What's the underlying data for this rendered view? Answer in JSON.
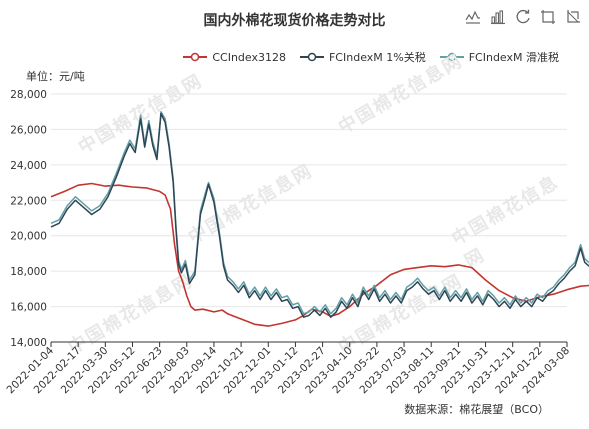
{
  "title": "国内外棉花现货价格走势对比",
  "unit": "单位：元/吨",
  "source": "数据来源：棉花展望（BCO）",
  "watermark": "中国棉花信息网",
  "toolbox": [
    {
      "name": "line-chart-icon"
    },
    {
      "name": "bar-chart-icon"
    },
    {
      "name": "restore-icon"
    },
    {
      "name": "zoom-icon"
    },
    {
      "name": "zoom-reset-icon"
    }
  ],
  "chart_data": {
    "type": "line",
    "title": "国内外棉花现货价格走势对比",
    "ylabel": "单位：元/吨",
    "ylim": [
      14000,
      28000
    ],
    "yticks": [
      14000,
      16000,
      18000,
      20000,
      22000,
      24000,
      26000,
      28000
    ],
    "ytick_labels": [
      "14,000",
      "16,000",
      "18,000",
      "20,000",
      "22,000",
      "24,000",
      "26,000",
      "28,000"
    ],
    "xticks": [
      "2022-01-04",
      "2022-02-17",
      "2022-03-30",
      "2022-05-12",
      "2022-06-23",
      "2022-08-03",
      "2022-09-14",
      "2022-10-21",
      "2022-12-01",
      "2023-01-12",
      "2023-02-27",
      "2023-04-10",
      "2023-05-22",
      "2023-07-03",
      "2023-08-11",
      "2023-09-21",
      "2023-10-31",
      "2023-12-11",
      "2024-01-22",
      "2024-03-08"
    ],
    "legend_position": "top-right",
    "grid": "horizontal",
    "series": [
      {
        "name": "CCIndex3128",
        "color": "#c23531",
        "points": [
          [
            0,
            22200
          ],
          [
            0.5,
            22500
          ],
          [
            1,
            22850
          ],
          [
            1.5,
            22950
          ],
          [
            2,
            22800
          ],
          [
            2.5,
            22850
          ],
          [
            3,
            22750
          ],
          [
            3.5,
            22700
          ],
          [
            4,
            22500
          ],
          [
            4.2,
            22300
          ],
          [
            4.4,
            21500
          ],
          [
            4.55,
            19500
          ],
          [
            4.7,
            18000
          ],
          [
            4.85,
            17400
          ],
          [
            5,
            16600
          ],
          [
            5.15,
            16000
          ],
          [
            5.3,
            15800
          ],
          [
            5.6,
            15850
          ],
          [
            6,
            15700
          ],
          [
            6.3,
            15800
          ],
          [
            6.5,
            15600
          ],
          [
            7,
            15300
          ],
          [
            7.5,
            15000
          ],
          [
            8,
            14900
          ],
          [
            8.5,
            15050
          ],
          [
            9,
            15250
          ],
          [
            9.3,
            15500
          ],
          [
            9.6,
            15850
          ],
          [
            10,
            15700
          ],
          [
            10.3,
            15450
          ],
          [
            10.6,
            15600
          ],
          [
            11,
            16000
          ],
          [
            11.5,
            16700
          ],
          [
            12,
            17200
          ],
          [
            12.5,
            17800
          ],
          [
            13,
            18100
          ],
          [
            13.5,
            18200
          ],
          [
            14,
            18300
          ],
          [
            14.5,
            18250
          ],
          [
            15,
            18350
          ],
          [
            15.5,
            18200
          ],
          [
            16,
            17500
          ],
          [
            16.5,
            16900
          ],
          [
            17,
            16500
          ],
          [
            17.5,
            16300
          ],
          [
            18,
            16550
          ],
          [
            18.5,
            16700
          ],
          [
            19,
            16950
          ],
          [
            19.5,
            17150
          ],
          [
            19.9,
            17200
          ]
        ]
      },
      {
        "name": "FCIndexM 1%关税",
        "color": "#2f4554",
        "points": [
          [
            0,
            20500
          ],
          [
            0.3,
            20700
          ],
          [
            0.6,
            21500
          ],
          [
            0.9,
            22000
          ],
          [
            1.2,
            21600
          ],
          [
            1.5,
            21200
          ],
          [
            1.8,
            21500
          ],
          [
            2.1,
            22200
          ],
          [
            2.4,
            23300
          ],
          [
            2.7,
            24500
          ],
          [
            2.9,
            25200
          ],
          [
            3.1,
            24700
          ],
          [
            3.3,
            26600
          ],
          [
            3.45,
            25000
          ],
          [
            3.6,
            26300
          ],
          [
            3.75,
            25100
          ],
          [
            3.9,
            24300
          ],
          [
            4.05,
            26900
          ],
          [
            4.2,
            26400
          ],
          [
            4.35,
            25000
          ],
          [
            4.5,
            23000
          ],
          [
            4.6,
            20400
          ],
          [
            4.7,
            18400
          ],
          [
            4.8,
            17900
          ],
          [
            4.95,
            18400
          ],
          [
            5.1,
            17300
          ],
          [
            5.3,
            17800
          ],
          [
            5.5,
            21200
          ],
          [
            5.7,
            22300
          ],
          [
            5.8,
            22900
          ],
          [
            6.0,
            21900
          ],
          [
            6.2,
            20000
          ],
          [
            6.35,
            18300
          ],
          [
            6.5,
            17500
          ],
          [
            6.7,
            17200
          ],
          [
            6.9,
            16800
          ],
          [
            7.1,
            17200
          ],
          [
            7.3,
            16500
          ],
          [
            7.5,
            16900
          ],
          [
            7.7,
            16400
          ],
          [
            7.9,
            16900
          ],
          [
            8.1,
            16400
          ],
          [
            8.3,
            16800
          ],
          [
            8.5,
            16300
          ],
          [
            8.7,
            16400
          ],
          [
            8.9,
            15900
          ],
          [
            9.1,
            16000
          ],
          [
            9.3,
            15400
          ],
          [
            9.5,
            15500
          ],
          [
            9.7,
            15800
          ],
          [
            9.9,
            15500
          ],
          [
            10.1,
            15900
          ],
          [
            10.3,
            15400
          ],
          [
            10.5,
            15700
          ],
          [
            10.7,
            16300
          ],
          [
            10.9,
            15900
          ],
          [
            11.1,
            16500
          ],
          [
            11.3,
            16000
          ],
          [
            11.5,
            16900
          ],
          [
            11.7,
            16400
          ],
          [
            11.9,
            17000
          ],
          [
            12.1,
            16300
          ],
          [
            12.3,
            16700
          ],
          [
            12.5,
            16200
          ],
          [
            12.7,
            16600
          ],
          [
            12.9,
            16200
          ],
          [
            13.1,
            16900
          ],
          [
            13.3,
            17100
          ],
          [
            13.5,
            17400
          ],
          [
            13.7,
            17000
          ],
          [
            13.9,
            16700
          ],
          [
            14.1,
            16900
          ],
          [
            14.3,
            16400
          ],
          [
            14.5,
            16900
          ],
          [
            14.7,
            16300
          ],
          [
            14.9,
            16700
          ],
          [
            15.1,
            16300
          ],
          [
            15.3,
            16800
          ],
          [
            15.5,
            16200
          ],
          [
            15.7,
            16600
          ],
          [
            15.9,
            16100
          ],
          [
            16.1,
            16700
          ],
          [
            16.3,
            16400
          ],
          [
            16.5,
            16000
          ],
          [
            16.7,
            16300
          ],
          [
            16.9,
            15900
          ],
          [
            17.1,
            16400
          ],
          [
            17.3,
            16000
          ],
          [
            17.5,
            16300
          ],
          [
            17.7,
            16000
          ],
          [
            17.9,
            16500
          ],
          [
            18.1,
            16300
          ],
          [
            18.3,
            16700
          ],
          [
            18.5,
            16900
          ],
          [
            18.7,
            17300
          ],
          [
            18.9,
            17600
          ],
          [
            19.1,
            18000
          ],
          [
            19.3,
            18300
          ],
          [
            19.5,
            19300
          ],
          [
            19.65,
            18500
          ],
          [
            19.8,
            18300
          ],
          [
            19.9,
            18200
          ]
        ]
      },
      {
        "name": "FCIndexM 滑准税",
        "color": "#61a0a8",
        "points": [
          [
            0,
            20700
          ],
          [
            0.3,
            20900
          ],
          [
            0.6,
            21700
          ],
          [
            0.9,
            22200
          ],
          [
            1.2,
            21800
          ],
          [
            1.5,
            21400
          ],
          [
            1.8,
            21700
          ],
          [
            2.1,
            22400
          ],
          [
            2.4,
            23500
          ],
          [
            2.7,
            24700
          ],
          [
            2.9,
            25400
          ],
          [
            3.1,
            24900
          ],
          [
            3.3,
            26800
          ],
          [
            3.45,
            25200
          ],
          [
            3.6,
            26500
          ],
          [
            3.75,
            25300
          ],
          [
            3.9,
            24500
          ],
          [
            4.05,
            27000
          ],
          [
            4.2,
            26600
          ],
          [
            4.35,
            25200
          ],
          [
            4.5,
            23200
          ],
          [
            4.6,
            20600
          ],
          [
            4.7,
            18600
          ],
          [
            4.8,
            18100
          ],
          [
            4.95,
            18600
          ],
          [
            5.1,
            17500
          ],
          [
            5.3,
            18000
          ],
          [
            5.5,
            21400
          ],
          [
            5.7,
            22500
          ],
          [
            5.8,
            23000
          ],
          [
            6.0,
            22100
          ],
          [
            6.2,
            20200
          ],
          [
            6.35,
            18500
          ],
          [
            6.5,
            17700
          ],
          [
            6.7,
            17400
          ],
          [
            6.9,
            17000
          ],
          [
            7.1,
            17400
          ],
          [
            7.3,
            16700
          ],
          [
            7.5,
            17100
          ],
          [
            7.7,
            16600
          ],
          [
            7.9,
            17100
          ],
          [
            8.1,
            16600
          ],
          [
            8.3,
            17000
          ],
          [
            8.5,
            16500
          ],
          [
            8.7,
            16600
          ],
          [
            8.9,
            16100
          ],
          [
            9.1,
            16200
          ],
          [
            9.3,
            15600
          ],
          [
            9.5,
            15700
          ],
          [
            9.7,
            16000
          ],
          [
            9.9,
            15700
          ],
          [
            10.1,
            16100
          ],
          [
            10.3,
            15600
          ],
          [
            10.5,
            15900
          ],
          [
            10.7,
            16500
          ],
          [
            10.9,
            16100
          ],
          [
            11.1,
            16700
          ],
          [
            11.3,
            16200
          ],
          [
            11.5,
            17100
          ],
          [
            11.7,
            16600
          ],
          [
            11.9,
            17200
          ],
          [
            12.1,
            16500
          ],
          [
            12.3,
            16900
          ],
          [
            12.5,
            16400
          ],
          [
            12.7,
            16800
          ],
          [
            12.9,
            16400
          ],
          [
            13.1,
            17100
          ],
          [
            13.3,
            17300
          ],
          [
            13.5,
            17600
          ],
          [
            13.7,
            17200
          ],
          [
            13.9,
            16900
          ],
          [
            14.1,
            17100
          ],
          [
            14.3,
            16600
          ],
          [
            14.5,
            17100
          ],
          [
            14.7,
            16500
          ],
          [
            14.9,
            16900
          ],
          [
            15.1,
            16500
          ],
          [
            15.3,
            17000
          ],
          [
            15.5,
            16400
          ],
          [
            15.7,
            16800
          ],
          [
            15.9,
            16300
          ],
          [
            16.1,
            16900
          ],
          [
            16.3,
            16600
          ],
          [
            16.5,
            16200
          ],
          [
            16.7,
            16500
          ],
          [
            16.9,
            16100
          ],
          [
            17.1,
            16600
          ],
          [
            17.3,
            16200
          ],
          [
            17.5,
            16500
          ],
          [
            17.7,
            16200
          ],
          [
            17.9,
            16700
          ],
          [
            18.1,
            16500
          ],
          [
            18.3,
            16900
          ],
          [
            18.5,
            17100
          ],
          [
            18.7,
            17500
          ],
          [
            18.9,
            17800
          ],
          [
            19.1,
            18200
          ],
          [
            19.3,
            18500
          ],
          [
            19.5,
            19500
          ],
          [
            19.65,
            18700
          ],
          [
            19.8,
            18500
          ],
          [
            19.9,
            18400
          ]
        ]
      }
    ]
  }
}
